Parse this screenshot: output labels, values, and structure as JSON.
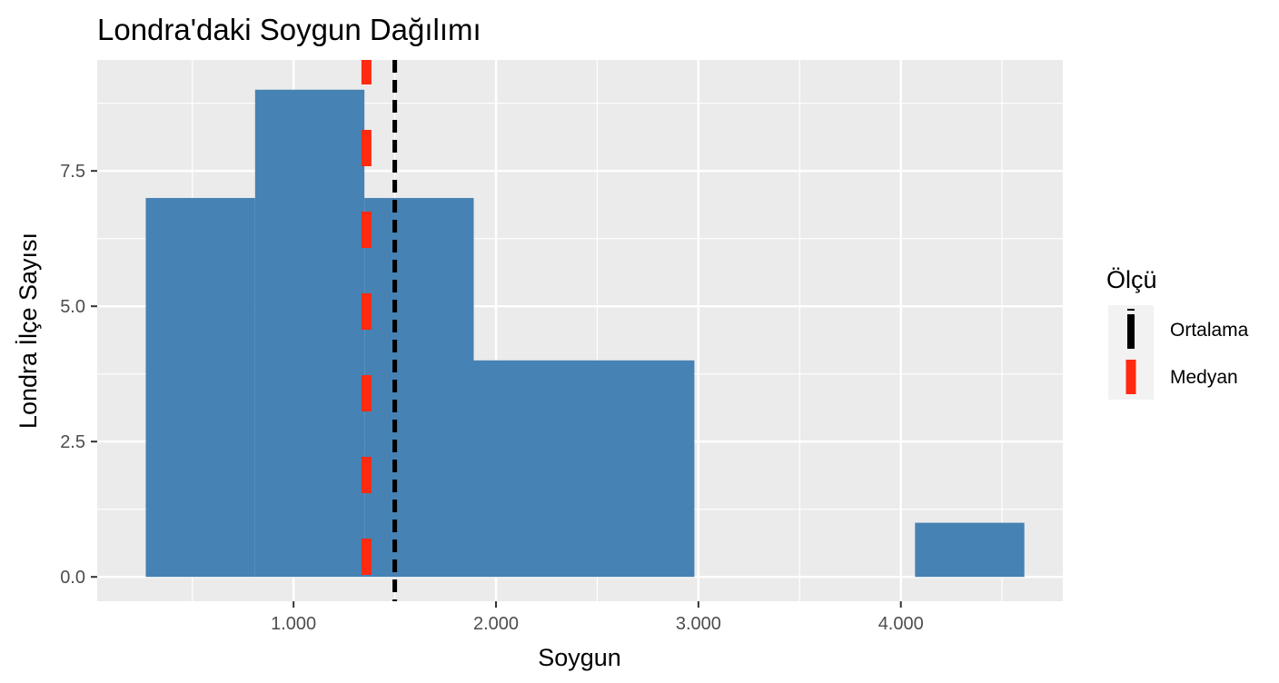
{
  "chart_data": {
    "type": "histogram",
    "title": "Londra'daki Soygun Dağılımı",
    "xlabel": "Soygun",
    "ylabel": "Londra İlçe Sayısı",
    "xlim": [
      30,
      4800
    ],
    "ylim": [
      -0.45,
      9.55
    ],
    "x_ticks": [
      1000,
      2000,
      3000,
      4000
    ],
    "x_tick_labels": [
      "1.000",
      "2.000",
      "3.000",
      "4.000"
    ],
    "y_ticks": [
      0,
      2.5,
      5,
      7.5
    ],
    "y_tick_labels": [
      "0.0",
      "2.5",
      "5.0",
      "7.5"
    ],
    "bins": [
      {
        "x0": 270,
        "x1": 810,
        "count": 7
      },
      {
        "x0": 810,
        "x1": 1350,
        "count": 9
      },
      {
        "x0": 1350,
        "x1": 1890,
        "count": 7
      },
      {
        "x0": 1890,
        "x1": 2980,
        "count": 4
      },
      {
        "x0": 2980,
        "x1": 4070,
        "count": 0
      },
      {
        "x0": 4070,
        "x1": 4610,
        "count": 1
      }
    ],
    "bar_color": "#4682b4",
    "panel_background": "#ebebeb",
    "grid": true,
    "vlines": [
      {
        "name": "Ortalama",
        "x": 1500,
        "color": "#000000"
      },
      {
        "name": "Medyan",
        "x": 1360,
        "color": "#ff2a10"
      }
    ],
    "legend": {
      "title": "Ölçü",
      "position": "right",
      "items": [
        "Ortalama",
        "Medyan"
      ]
    }
  }
}
